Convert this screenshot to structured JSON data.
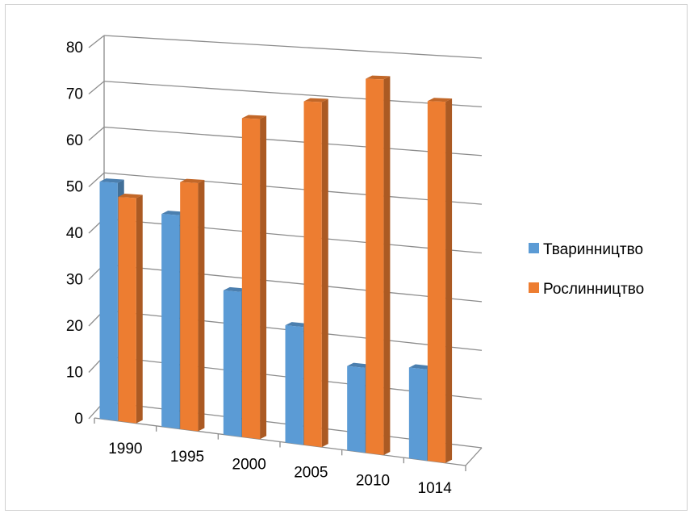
{
  "chart_data": {
    "type": "bar",
    "categories": [
      "1990",
      "1995",
      "2000",
      "2005",
      "2010",
      "1014"
    ],
    "series": [
      {
        "name": "Тваринництво",
        "values": [
          51,
          45,
          30,
          24,
          17,
          18
        ],
        "color": "#5b9bd5"
      },
      {
        "name": "Рослинництво",
        "values": [
          48,
          52,
          66,
          70,
          75,
          71
        ],
        "color": "#ed7d31"
      }
    ],
    "ylim": [
      0,
      80
    ],
    "yticks": [
      0,
      10,
      20,
      30,
      40,
      50,
      60,
      70,
      80
    ],
    "grid": true,
    "legend_position": "right",
    "style": "3d-perspective"
  }
}
